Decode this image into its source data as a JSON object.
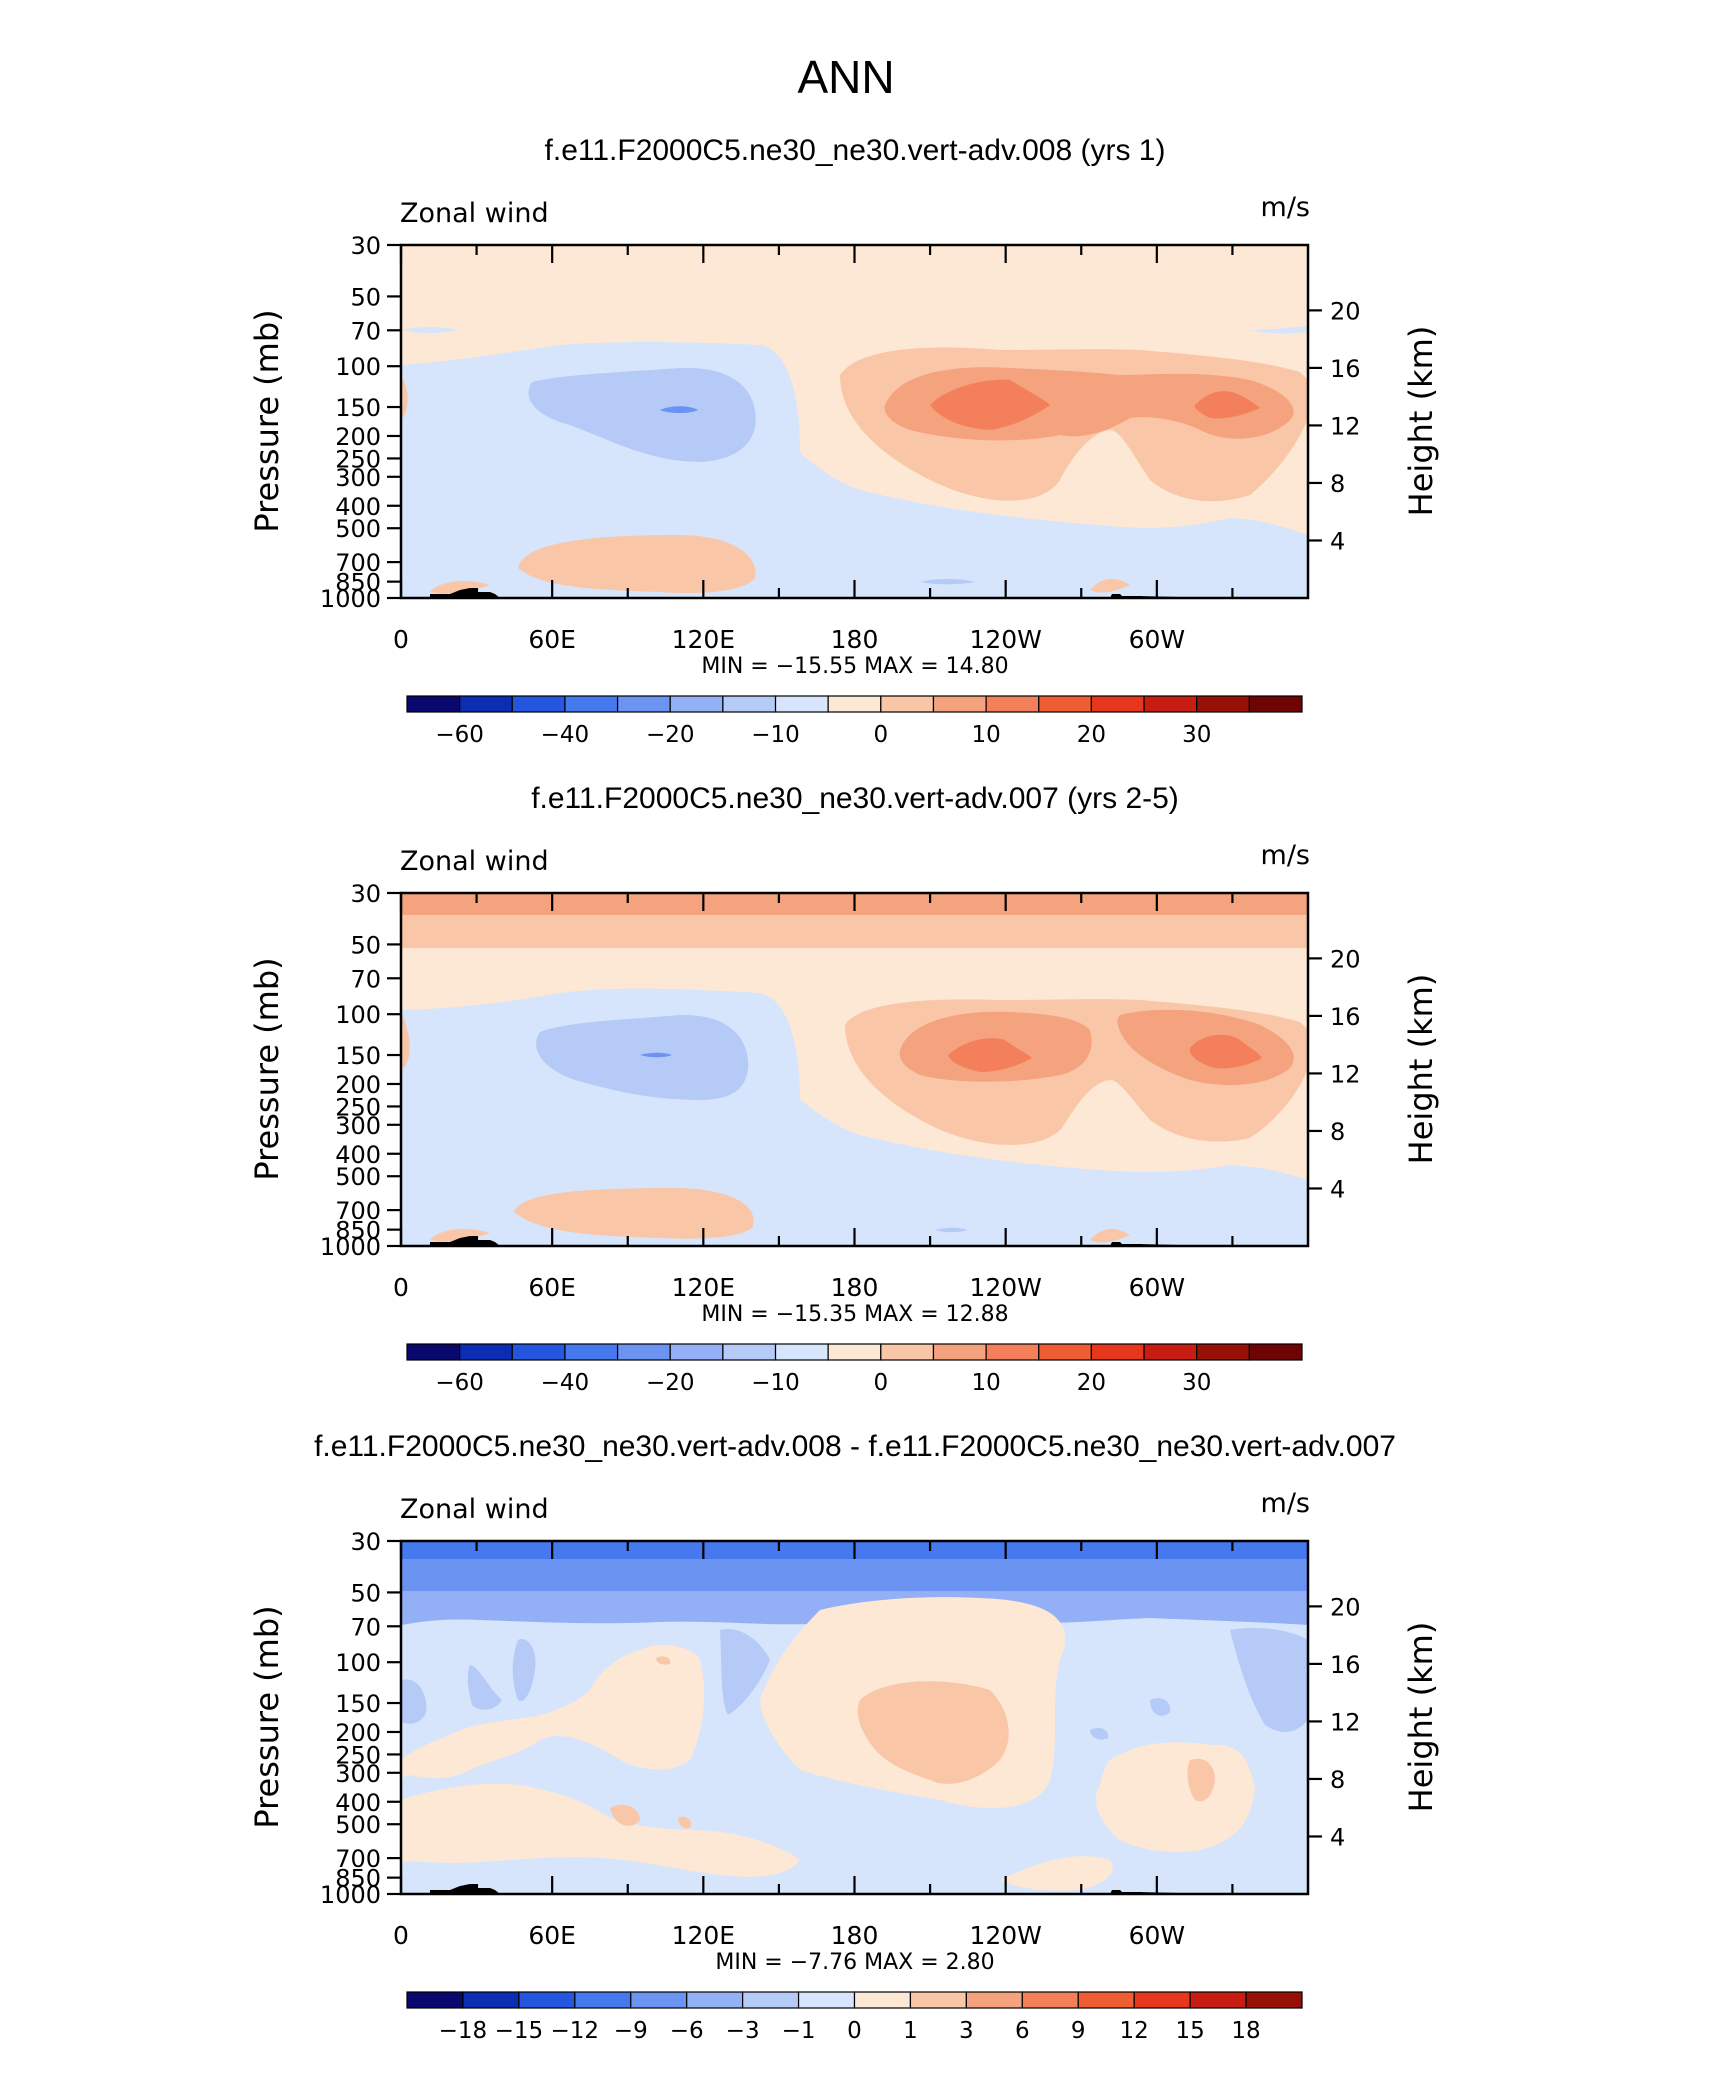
{
  "figure_title": "ANN",
  "chart_data": [
    {
      "type": "contour",
      "title": "f.e11.F2000C5.ne30_ne30.vert-adv.008 (yrs 1)",
      "left_label": "Zonal wind",
      "right_label": "m/s",
      "ylabel": "Pressure (mb)",
      "ylabel_right": "Height (km)",
      "xticks": [
        "0",
        "60E",
        "120E",
        "180",
        "120W",
        "60W"
      ],
      "yticks": [
        "30",
        "50",
        "70",
        "100",
        "150",
        "200",
        "250",
        "300",
        "400",
        "500",
        "700",
        "850",
        "1000"
      ],
      "yticks_right": [
        "20",
        "16",
        "12",
        "8",
        "4"
      ],
      "stats": "MIN = −15.55   MAX =   14.80",
      "min": -15.55,
      "max": 14.8,
      "levels": [
        -70,
        -60,
        -50,
        -40,
        -30,
        -20,
        -15,
        -10,
        -5,
        0,
        5,
        10,
        15,
        20,
        25,
        30,
        35
      ],
      "colorbar_labels": [
        "−60",
        "−40",
        "−20",
        "−10",
        "0",
        "10",
        "20",
        "30"
      ]
    },
    {
      "type": "contour",
      "title": "f.e11.F2000C5.ne30_ne30.vert-adv.007 (yrs 2-5)",
      "left_label": "Zonal wind",
      "right_label": "m/s",
      "ylabel": "Pressure (mb)",
      "ylabel_right": "Height (km)",
      "xticks": [
        "0",
        "60E",
        "120E",
        "180",
        "120W",
        "60W"
      ],
      "yticks": [
        "30",
        "50",
        "70",
        "100",
        "150",
        "200",
        "250",
        "300",
        "400",
        "500",
        "700",
        "850",
        "1000"
      ],
      "yticks_right": [
        "20",
        "16",
        "12",
        "8",
        "4"
      ],
      "stats": "MIN = −15.35   MAX =   12.88",
      "min": -15.35,
      "max": 12.88,
      "levels": [
        -70,
        -60,
        -50,
        -40,
        -30,
        -20,
        -15,
        -10,
        -5,
        0,
        5,
        10,
        15,
        20,
        25,
        30,
        35
      ],
      "colorbar_labels": [
        "−60",
        "−40",
        "−20",
        "−10",
        "0",
        "10",
        "20",
        "30"
      ]
    },
    {
      "type": "contour",
      "title": "f.e11.F2000C5.ne30_ne30.vert-adv.008 - f.e11.F2000C5.ne30_ne30.vert-adv.007",
      "left_label": "Zonal wind",
      "right_label": "m/s",
      "ylabel": "Pressure (mb)",
      "ylabel_right": "Height (km)",
      "xticks": [
        "0",
        "60E",
        "120E",
        "180",
        "120W",
        "60W"
      ],
      "yticks": [
        "30",
        "50",
        "70",
        "100",
        "150",
        "200",
        "250",
        "300",
        "400",
        "500",
        "700",
        "850",
        "1000"
      ],
      "yticks_right": [
        "20",
        "16",
        "12",
        "8",
        "4"
      ],
      "stats": "MIN =   −7.76   MAX =    2.80",
      "min": -7.76,
      "max": 2.8,
      "levels": [
        -18,
        -15,
        -12,
        -9,
        -6,
        -3,
        -1,
        0,
        1,
        3,
        6,
        9,
        12,
        15,
        18
      ],
      "colorbar_labels": [
        "−18",
        "−15",
        "−12",
        "−9",
        "−6",
        "−3",
        "−1",
        "0",
        "1",
        "3",
        "6",
        "9",
        "12",
        "15",
        "18"
      ]
    }
  ],
  "colors": {
    "palette": [
      "#08086e",
      "#0a2db4",
      "#2456e0",
      "#4678ee",
      "#6b93f2",
      "#93b0f6",
      "#b6caf8",
      "#d6e5fb",
      "#fde8d5",
      "#f9c7a8",
      "#f5a27e",
      "#f3805a",
      "#ef5d33",
      "#e6371d",
      "#c81d12",
      "#961008",
      "#6e0404"
    ],
    "diff_palette": [
      "#08086e",
      "#0a2db4",
      "#2456e0",
      "#4678ee",
      "#6b93f2",
      "#93b0f6",
      "#b6caf8",
      "#d6e5fb",
      "#fde8d5",
      "#f9c7a8",
      "#f5a27e",
      "#f3805a",
      "#ef5d33",
      "#e6371d",
      "#c81d12",
      "#961008"
    ],
    "topography": "#000000"
  }
}
